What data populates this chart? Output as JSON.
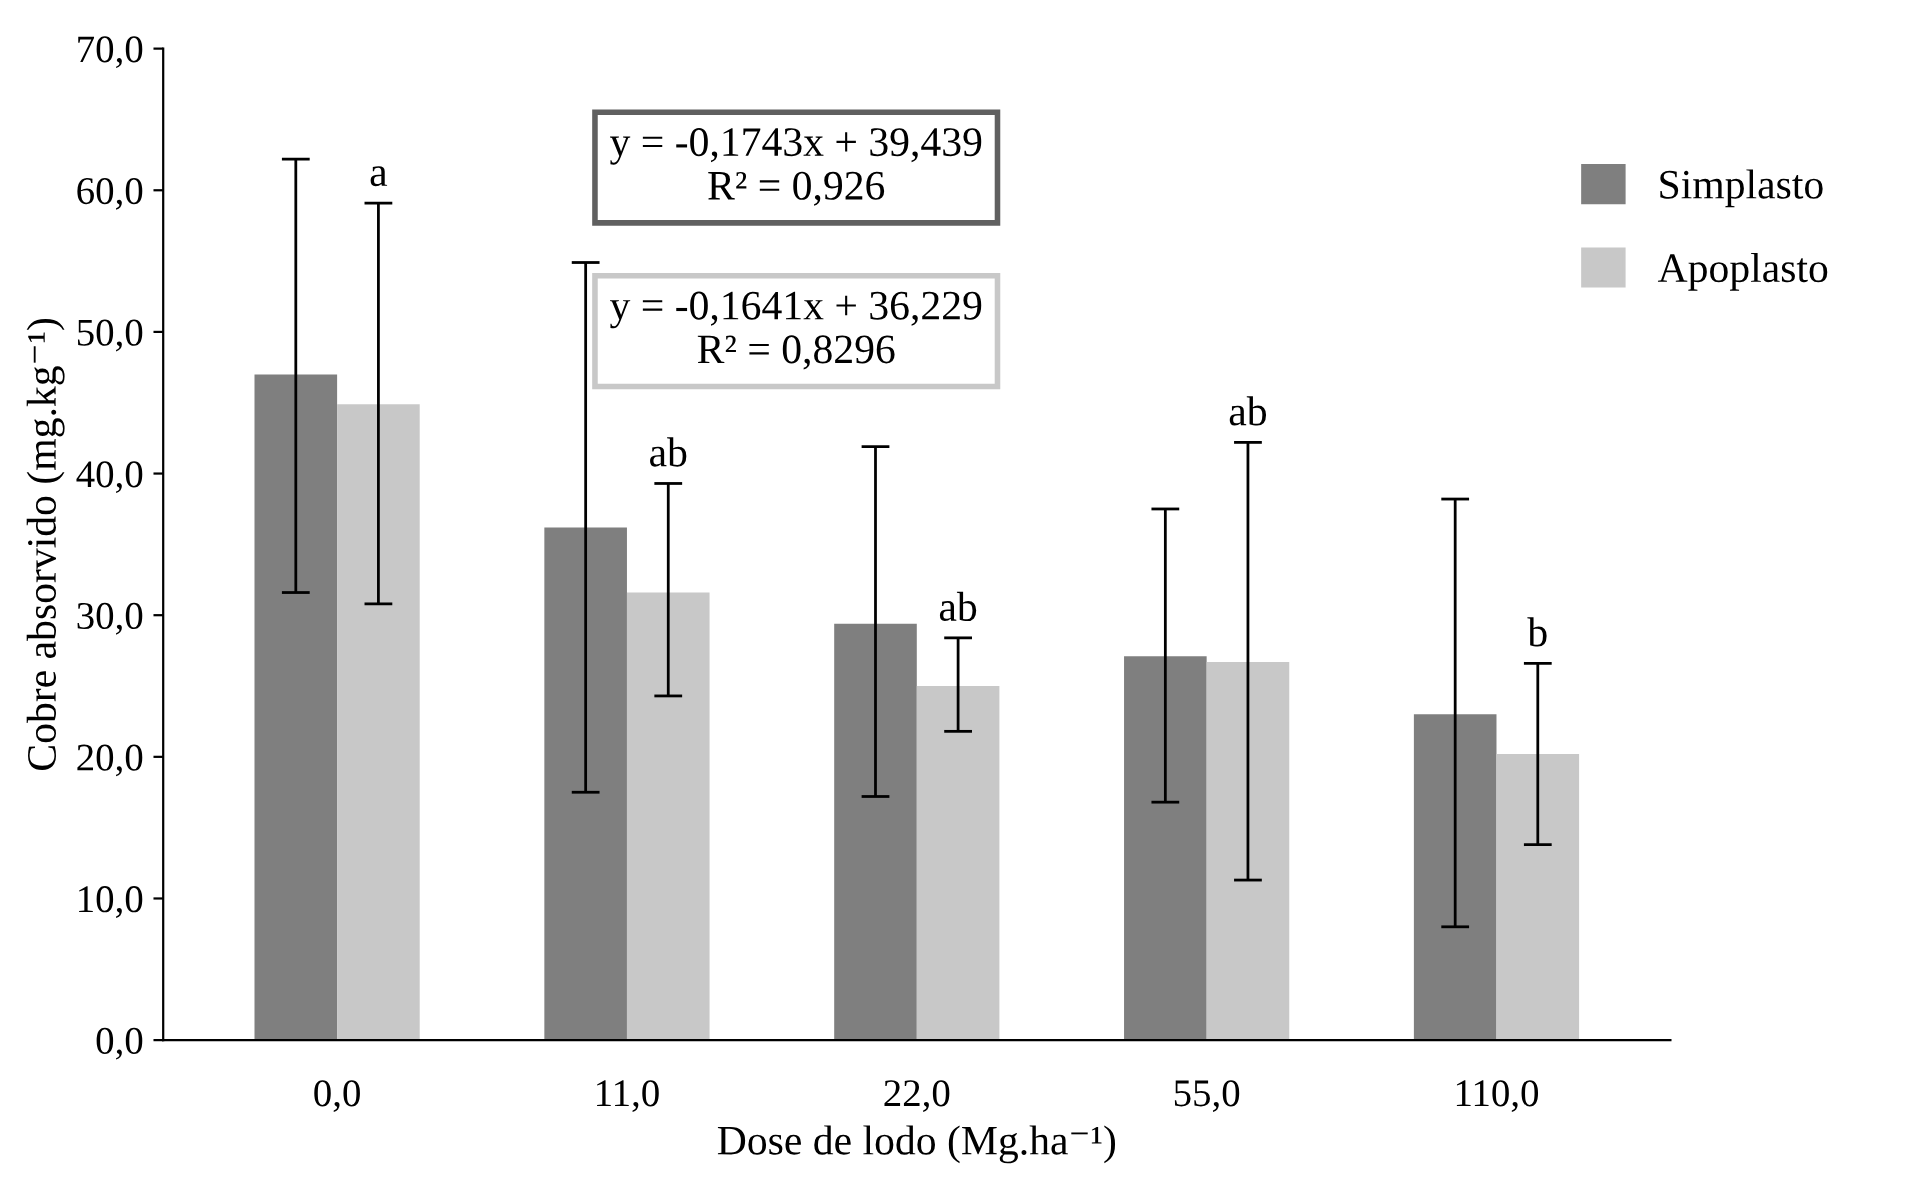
{
  "chart_data": {
    "type": "bar",
    "xlabel": "Dose de lodo (Mg.ha⁻¹)",
    "ylabel": "Cobre absorvido (mg.kg⁻¹)",
    "categories": [
      "0,0",
      "11,0",
      "22,0",
      "55,0",
      "110,0"
    ],
    "series": [
      {
        "name": "Simplasto",
        "color": "#7f7f7f",
        "values": [
          47.0,
          36.2,
          29.4,
          27.1,
          23.0
        ],
        "errors": [
          [
            31.6,
            62.2
          ],
          [
            17.5,
            54.9
          ],
          [
            17.2,
            41.9
          ],
          [
            16.8,
            37.5
          ],
          [
            8.0,
            38.2
          ]
        ]
      },
      {
        "name": "Apoplasto",
        "color": "#c8c8c8",
        "values": [
          44.9,
          31.6,
          25.0,
          26.7,
          20.2
        ],
        "errors": [
          [
            30.8,
            59.1
          ],
          [
            24.3,
            39.3
          ],
          [
            21.8,
            28.4
          ],
          [
            11.3,
            42.2
          ],
          [
            13.8,
            26.6
          ]
        ]
      }
    ],
    "ylim": [
      0,
      70
    ],
    "yticks": [
      {
        "value": 0,
        "label": "0,0"
      },
      {
        "value": 10,
        "label": "10,0"
      },
      {
        "value": 20,
        "label": "20,0"
      },
      {
        "value": 30,
        "label": "30,0"
      },
      {
        "value": 40,
        "label": "40,0"
      },
      {
        "value": 50,
        "label": "50,0"
      },
      {
        "value": 60,
        "label": "60,0"
      },
      {
        "value": 70,
        "label": "70,0"
      }
    ],
    "annotations": [
      "a",
      "ab",
      "ab",
      "ab",
      "b",
      "y = -0,1743x + 39,439\nR² = 0,926",
      "y = -0,1641x + 36,229\nR² = 0,8296"
    ],
    "grid": false,
    "legend": "top right"
  }
}
